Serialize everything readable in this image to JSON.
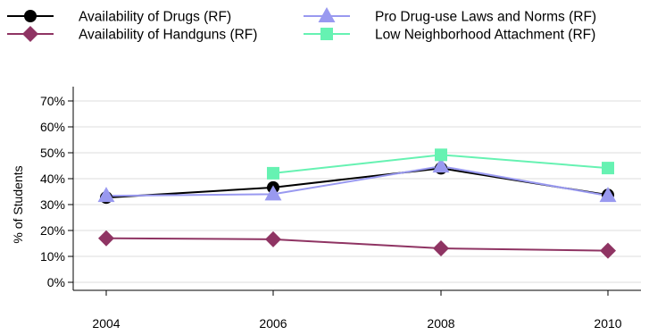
{
  "chart_data": {
    "type": "line",
    "x": [
      "2004",
      "2006",
      "2008",
      "2010"
    ],
    "ylabel": "% of Students",
    "xlabel": "",
    "title": "",
    "ylim": [
      0,
      70
    ],
    "yticks": [
      "0%",
      "10%",
      "20%",
      "30%",
      "40%",
      "50%",
      "60%",
      "70%"
    ],
    "yticks_values": [
      0,
      10,
      20,
      30,
      40,
      50,
      60,
      70
    ],
    "grid": true,
    "legend_position": "top",
    "series": [
      {
        "name": "Availability of Drugs (RF)",
        "color": "#000000",
        "marker": "circle",
        "values": [
          32.7,
          36.6,
          44.0,
          33.7
        ]
      },
      {
        "name": "Availability of Handguns (RF)",
        "color": "#8f3463",
        "marker": "diamond",
        "values": [
          17.0,
          16.6,
          13.1,
          12.2
        ]
      },
      {
        "name": "Pro Drug-use Laws and Norms (RF)",
        "color": "#9999f0",
        "marker": "triangle",
        "values": [
          33.4,
          34.0,
          44.8,
          33.4
        ]
      },
      {
        "name": "Low Neighborhood Attachment (RF)",
        "color": "#66f2b2",
        "marker": "square",
        "values": [
          null,
          42.1,
          49.2,
          44.1
        ]
      }
    ]
  }
}
